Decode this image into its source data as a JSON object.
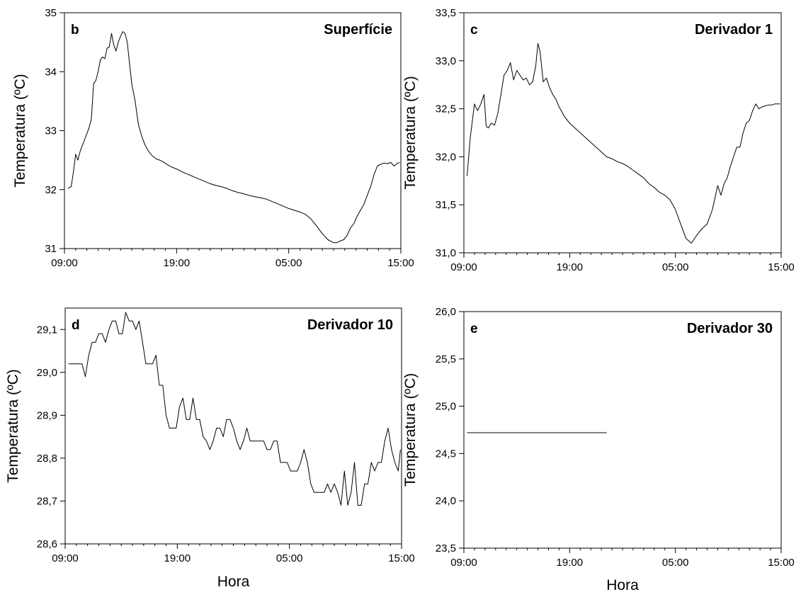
{
  "chart_data": [
    {
      "type": "line",
      "letter": "b",
      "title": "Superfície",
      "ylabel": "Temperatura (ºC)",
      "xlabel": "",
      "x_tick_labels": [
        "09:00",
        "19:00",
        "05:00",
        "15:00"
      ],
      "x_ticks": [
        0,
        10,
        20,
        30
      ],
      "xlim": [
        0,
        30
      ],
      "y_ticks": [
        31,
        32,
        33,
        34,
        35
      ],
      "y_tick_labels": [
        "31",
        "32",
        "33",
        "34",
        "35"
      ],
      "ylim": [
        31,
        35
      ],
      "series": [
        {
          "x": [
            0.3,
            0.6,
            0.8,
            1.0,
            1.2,
            1.4,
            1.6,
            1.8,
            2.0,
            2.2,
            2.4,
            2.6,
            2.8,
            3.0,
            3.2,
            3.4,
            3.6,
            3.8,
            4.0,
            4.2,
            4.4,
            4.6,
            4.8,
            5.0,
            5.2,
            5.4,
            5.6,
            5.8,
            6.0,
            6.3,
            6.6,
            6.9,
            7.2,
            7.5,
            7.8,
            8.2,
            8.5,
            8.8,
            9.2,
            9.6,
            10.0,
            10.5,
            11.0,
            11.5,
            12.0,
            12.5,
            13.0,
            13.5,
            14.0,
            14.5,
            15.0,
            15.5,
            16.0,
            16.5,
            17.0,
            17.5,
            18.0,
            18.5,
            19.0,
            19.5,
            20.0,
            20.5,
            21.0,
            21.5,
            22.0,
            22.5,
            23.0,
            23.5,
            24.0,
            24.3,
            24.6,
            24.9,
            25.2,
            25.5,
            25.8,
            26.1,
            26.4,
            26.7,
            27.0,
            27.3,
            27.6,
            27.9,
            28.2,
            28.5,
            28.8,
            29.1,
            29.4,
            29.7,
            29.9
          ],
          "y": [
            32.02,
            32.05,
            32.3,
            32.6,
            32.5,
            32.65,
            32.75,
            32.85,
            32.95,
            33.05,
            33.2,
            33.8,
            33.85,
            34.0,
            34.2,
            34.25,
            34.22,
            34.4,
            34.42,
            34.65,
            34.45,
            34.35,
            34.5,
            34.6,
            34.68,
            34.65,
            34.5,
            34.15,
            33.8,
            33.5,
            33.1,
            32.9,
            32.75,
            32.65,
            32.58,
            32.52,
            32.5,
            32.47,
            32.42,
            32.38,
            32.35,
            32.3,
            32.26,
            32.22,
            32.18,
            32.14,
            32.1,
            32.07,
            32.05,
            32.02,
            31.98,
            31.95,
            31.93,
            31.9,
            31.88,
            31.86,
            31.84,
            31.8,
            31.76,
            31.72,
            31.68,
            31.65,
            31.62,
            31.58,
            31.5,
            31.38,
            31.25,
            31.15,
            31.1,
            31.1,
            31.13,
            31.15,
            31.22,
            31.35,
            31.42,
            31.55,
            31.65,
            31.75,
            31.9,
            32.05,
            32.25,
            32.4,
            32.43,
            32.45,
            32.44,
            32.46,
            32.4,
            32.45,
            32.46
          ]
        }
      ]
    },
    {
      "type": "line",
      "letter": "c",
      "title": "Derivador 1",
      "ylabel": "Temperatura (ºC)",
      "xlabel": "",
      "x_tick_labels": [
        "09:00",
        "19:00",
        "05:00",
        "15:00"
      ],
      "x_ticks": [
        0,
        10,
        20,
        30
      ],
      "xlim": [
        0,
        30
      ],
      "y_ticks": [
        31.0,
        31.5,
        32.0,
        32.5,
        33.0,
        33.5
      ],
      "y_tick_labels": [
        "31,0",
        "31,5",
        "32,0",
        "32,5",
        "33,0",
        "33,5"
      ],
      "ylim": [
        31.0,
        33.5
      ],
      "series": [
        {
          "x": [
            0.3,
            0.6,
            1.0,
            1.3,
            1.6,
            1.9,
            2.1,
            2.3,
            2.6,
            2.9,
            3.2,
            3.5,
            3.8,
            4.1,
            4.4,
            4.7,
            5.0,
            5.3,
            5.6,
            5.9,
            6.2,
            6.5,
            6.8,
            7.0,
            7.2,
            7.5,
            7.8,
            8.1,
            8.4,
            8.7,
            9.0,
            9.5,
            10.0,
            10.5,
            11.0,
            11.5,
            12.0,
            12.5,
            13.0,
            13.5,
            14.0,
            14.5,
            15.0,
            15.5,
            16.0,
            16.5,
            17.0,
            17.5,
            18.0,
            18.5,
            19.0,
            19.5,
            20.0,
            20.5,
            21.0,
            21.5,
            22.0,
            22.5,
            23.0,
            23.5,
            24.0,
            24.3,
            24.6,
            24.9,
            25.2,
            25.5,
            25.8,
            26.1,
            26.4,
            26.7,
            27.0,
            27.3,
            27.6,
            27.9,
            28.2,
            28.5,
            28.8,
            29.1,
            29.4,
            29.7,
            29.9
          ],
          "y": [
            31.8,
            32.2,
            32.55,
            32.48,
            32.55,
            32.65,
            32.32,
            32.3,
            32.35,
            32.33,
            32.45,
            32.65,
            32.85,
            32.9,
            32.98,
            32.8,
            32.9,
            32.85,
            32.8,
            32.82,
            32.75,
            32.78,
            32.95,
            33.18,
            33.1,
            32.78,
            32.82,
            32.72,
            32.65,
            32.6,
            32.52,
            32.42,
            32.35,
            32.3,
            32.25,
            32.2,
            32.15,
            32.1,
            32.05,
            32.0,
            31.98,
            31.95,
            31.93,
            31.9,
            31.86,
            31.82,
            31.78,
            31.72,
            31.68,
            31.63,
            31.6,
            31.55,
            31.45,
            31.3,
            31.15,
            31.1,
            31.18,
            31.25,
            31.3,
            31.45,
            31.7,
            31.6,
            31.72,
            31.78,
            31.9,
            32.0,
            32.1,
            32.1,
            32.25,
            32.35,
            32.38,
            32.48,
            32.55,
            32.5,
            32.52,
            32.53,
            32.54,
            32.54,
            32.55,
            32.55,
            32.55
          ]
        }
      ]
    },
    {
      "type": "line",
      "letter": "d",
      "title": "Derivador 10",
      "ylabel": "Temperatura (ºC)",
      "xlabel": "Hora",
      "x_tick_labels": [
        "09:00",
        "19:00",
        "05:00",
        "15:00"
      ],
      "x_ticks": [
        0,
        10,
        20,
        30
      ],
      "xlim": [
        0,
        30
      ],
      "y_ticks": [
        28.6,
        28.7,
        28.8,
        28.9,
        29.0,
        29.1
      ],
      "y_tick_labels": [
        "28,6",
        "28,7",
        "28,8",
        "28,9",
        "29,0",
        "29,1"
      ],
      "ylim": [
        28.6,
        29.15
      ],
      "series": [
        {
          "x": [
            0.3,
            1.5,
            1.8,
            2.1,
            2.4,
            2.7,
            3.0,
            3.3,
            3.6,
            3.9,
            4.2,
            4.5,
            4.8,
            5.1,
            5.4,
            5.7,
            6.0,
            6.3,
            6.6,
            6.9,
            7.2,
            7.5,
            7.8,
            8.1,
            8.4,
            8.7,
            9.0,
            9.3,
            9.6,
            9.9,
            10.2,
            10.5,
            10.8,
            11.1,
            11.4,
            11.7,
            12.0,
            12.3,
            12.6,
            12.9,
            13.2,
            13.5,
            13.8,
            14.1,
            14.4,
            14.7,
            15.0,
            15.3,
            15.6,
            15.9,
            16.2,
            16.5,
            16.8,
            17.1,
            17.4,
            17.7,
            18.0,
            18.3,
            18.6,
            18.9,
            19.2,
            19.5,
            19.8,
            20.1,
            20.4,
            20.7,
            21.0,
            21.3,
            21.6,
            21.9,
            22.2,
            22.5,
            22.8,
            23.1,
            23.4,
            23.7,
            24.0,
            24.3,
            24.6,
            24.9,
            25.2,
            25.5,
            25.8,
            26.1,
            26.4,
            26.7,
            27.0,
            27.3,
            27.6,
            27.9,
            28.2,
            28.5,
            28.8,
            29.1,
            29.4,
            29.7,
            29.9
          ],
          "y": [
            29.02,
            29.02,
            28.99,
            29.04,
            29.07,
            29.07,
            29.09,
            29.09,
            29.07,
            29.1,
            29.12,
            29.12,
            29.09,
            29.09,
            29.14,
            29.12,
            29.12,
            29.1,
            29.12,
            29.07,
            29.02,
            29.02,
            29.02,
            29.04,
            28.97,
            28.97,
            28.9,
            28.87,
            28.87,
            28.87,
            28.92,
            28.94,
            28.89,
            28.89,
            28.94,
            28.89,
            28.89,
            28.85,
            28.84,
            28.82,
            28.84,
            28.87,
            28.87,
            28.85,
            28.89,
            28.89,
            28.87,
            28.84,
            28.82,
            28.84,
            28.87,
            28.84,
            28.84,
            28.84,
            28.84,
            28.84,
            28.82,
            28.82,
            28.84,
            28.84,
            28.79,
            28.79,
            28.79,
            28.77,
            28.77,
            28.77,
            28.79,
            28.82,
            28.79,
            28.74,
            28.72,
            28.72,
            28.72,
            28.72,
            28.74,
            28.72,
            28.74,
            28.72,
            28.69,
            28.77,
            28.69,
            28.72,
            28.79,
            28.69,
            28.69,
            28.74,
            28.74,
            28.79,
            28.77,
            28.79,
            28.79,
            28.84,
            28.87,
            28.82,
            28.79,
            28.77,
            28.82
          ]
        }
      ]
    },
    {
      "type": "line",
      "letter": "e",
      "title": "Derivador 30",
      "ylabel": "Temperatura (ºC)",
      "xlabel": "Hora",
      "x_tick_labels": [
        "09:00",
        "19:00",
        "05:00",
        "15:00"
      ],
      "x_ticks": [
        0,
        10,
        20,
        30
      ],
      "xlim": [
        0,
        30
      ],
      "y_ticks": [
        23.5,
        24.0,
        24.5,
        25.0,
        25.5,
        26.0
      ],
      "y_tick_labels": [
        "23,5",
        "24,0",
        "24,5",
        "25,0",
        "25,5",
        "26,0"
      ],
      "ylim": [
        23.5,
        26.0
      ],
      "series": [
        {
          "x": [
            0.3,
            13.5
          ],
          "y": [
            24.72,
            24.72
          ]
        }
      ]
    }
  ]
}
